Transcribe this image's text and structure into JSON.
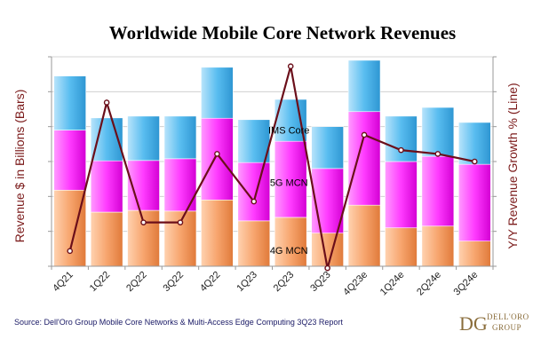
{
  "chart_data": {
    "type": "bar",
    "stacked": true,
    "title": "Worldwide Mobile Core Network Revenues",
    "ylabel_left": "Revenue $ in Billions (Bars)",
    "ylabel_right": "Y/Y Revenue Growth % (Line)",
    "categories": [
      "4Q21",
      "1Q22",
      "2Q22",
      "3Q22",
      "4Q22",
      "1Q23",
      "2Q23",
      "3Q23",
      "4Q23e",
      "1Q24e",
      "2Q24e",
      "3Q24e"
    ],
    "series": [
      {
        "name": "4G MCN",
        "color": "#f39a5c",
        "values": [
          2.18,
          1.55,
          1.6,
          1.58,
          1.9,
          1.3,
          1.4,
          0.95,
          1.75,
          1.1,
          1.15,
          0.72
        ]
      },
      {
        "name": "5G MCN",
        "color": "#ff33ff",
        "values": [
          1.72,
          1.47,
          1.43,
          1.5,
          2.34,
          1.67,
          2.18,
          1.85,
          2.68,
          1.9,
          2.0,
          2.2
        ]
      },
      {
        "name": "IMS Core",
        "color": "#4fb3e8",
        "values": [
          1.55,
          1.23,
          1.27,
          1.22,
          1.46,
          1.23,
          1.2,
          1.2,
          1.47,
          1.3,
          1.4,
          1.2
        ]
      }
    ],
    "line": {
      "color": "#6b0f1a",
      "values": [
        8,
        86,
        23,
        23,
        59,
        34,
        105,
        -1,
        69,
        61,
        59,
        55
      ],
      "ylim": [
        0,
        110
      ]
    },
    "ylim": [
      0,
      6
    ],
    "grid": true,
    "labels": [
      {
        "series": "IMS Core",
        "text": "IMS Core"
      },
      {
        "series": "5G MCN",
        "text": "5G MCN"
      },
      {
        "series": "4G MCN",
        "text": "4G MCN"
      }
    ]
  },
  "source": "Source: Dell'Oro Group Mobile Core Networks & Multi-Access Edge Computing 3Q23 Report",
  "logo": {
    "mark": "DG",
    "line1": "DELL'ORO",
    "line2": "GROUP"
  }
}
